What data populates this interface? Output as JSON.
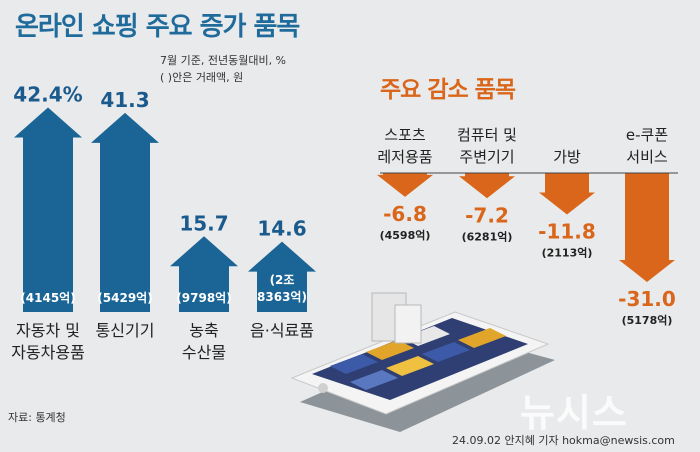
{
  "header": {
    "title": "온라인 쇼핑 주요 증가 품목",
    "note1": "7월 기준, 전년동월대비, %",
    "note2": "( )안은 거래액, 원"
  },
  "decrease_header": {
    "title": "주요 감소 품목"
  },
  "footer": {
    "source": "자료: 통계청",
    "byline": "24.09.02 안지혜 기자 hokma@newsis.com",
    "watermark": "뉴시스"
  },
  "colors": {
    "increase": "#1a6496",
    "decrease": "#d9661a",
    "increase_text": "#1a5a8c",
    "decrease_text": "#d9661a"
  },
  "chart_data": [
    {
      "type": "bar",
      "title": "온라인 쇼핑 주요 증가 품목",
      "unit": "%",
      "categories": [
        "자동차 및 자동차용품",
        "통신기기",
        "농축 수산물",
        "음·식료품"
      ],
      "label_lines": [
        [
          "자동차 및",
          "자동차용품"
        ],
        [
          "통신기기"
        ],
        [
          "농축",
          "수산물"
        ],
        [
          "음·식료품"
        ]
      ],
      "values": [
        42.4,
        41.3,
        15.7,
        14.6
      ],
      "value_labels": [
        "42.4%",
        "41.3",
        "15.7",
        "14.6"
      ],
      "amounts": [
        [
          "(4145억)"
        ],
        [
          "(5429억)"
        ],
        [
          "(9798억)"
        ],
        [
          "(2조",
          "8363억)"
        ]
      ],
      "ylim": [
        0,
        45
      ]
    },
    {
      "type": "bar",
      "title": "주요 감소 품목",
      "unit": "%",
      "categories": [
        "스포츠 레저용품",
        "컴퓨터 및 주변기기",
        "가방",
        "e-쿠폰 서비스"
      ],
      "label_lines": [
        [
          "스포츠",
          "레저용품"
        ],
        [
          "컴퓨터 및",
          "주변기기"
        ],
        [
          "가방"
        ],
        [
          "e-쿠폰",
          "서비스"
        ]
      ],
      "values": [
        -6.8,
        -7.2,
        -11.8,
        -31.0
      ],
      "value_labels": [
        "-6.8",
        "-7.2",
        "-11.8",
        "-31.0"
      ],
      "amounts": [
        "(4598억)",
        "(6281억)",
        "(2113억)",
        "(5178억)"
      ],
      "ylim": [
        -35,
        0
      ]
    }
  ]
}
